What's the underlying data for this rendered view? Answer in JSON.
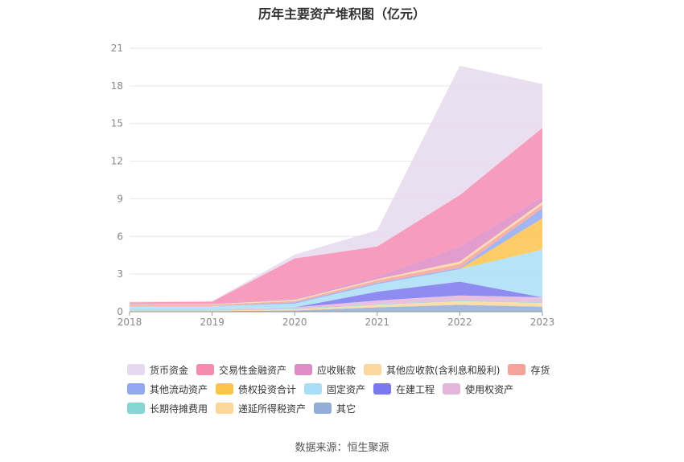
{
  "chart_data": {
    "type": "area",
    "stacked": true,
    "title": "历年主要资产堆积图（亿元）",
    "categories": [
      "2018",
      "2019",
      "2020",
      "2021",
      "2022",
      "2023"
    ],
    "ylim": [
      0,
      21
    ],
    "yticks": [
      0,
      3,
      6,
      9,
      12,
      15,
      18,
      21
    ],
    "grid": true,
    "legend_position": "bottom",
    "series": [
      {
        "name": "其它",
        "color": "#94acd8",
        "values": [
          0.05,
          0.05,
          0.1,
          0.35,
          0.55,
          0.4
        ]
      },
      {
        "name": "递延所得税资产",
        "color": "#fdd79a",
        "values": [
          0.05,
          0.05,
          0.1,
          0.2,
          0.3,
          0.3
        ]
      },
      {
        "name": "长期待摊费用",
        "color": "#86d5d5",
        "values": [
          0.05,
          0.05,
          0.05,
          0.05,
          0.05,
          0.05
        ]
      },
      {
        "name": "使用权资产",
        "color": "#e3b7db",
        "values": [
          0.0,
          0.0,
          0.1,
          0.3,
          0.4,
          0.4
        ]
      },
      {
        "name": "在建工程",
        "color": "#7b78ee",
        "values": [
          0.0,
          0.0,
          0.0,
          0.7,
          1.1,
          0.0
        ]
      },
      {
        "name": "固定资产",
        "color": "#a9def6",
        "values": [
          0.3,
          0.3,
          0.3,
          0.6,
          1.0,
          3.8
        ]
      },
      {
        "name": "债权投资合计",
        "color": "#fcc44b",
        "values": [
          0.0,
          0.0,
          0.0,
          0.0,
          0.0,
          2.5
        ]
      },
      {
        "name": "其他流动资产",
        "color": "#92a8f2",
        "values": [
          0.0,
          0.0,
          0.1,
          0.1,
          0.1,
          0.8
        ]
      },
      {
        "name": "存货",
        "color": "#f6a19a",
        "values": [
          0.1,
          0.1,
          0.1,
          0.2,
          0.3,
          0.3
        ]
      },
      {
        "name": "其他应收款(含利息和股利)",
        "color": "#fbd79f",
        "values": [
          0.05,
          0.05,
          0.1,
          0.1,
          0.2,
          0.2
        ]
      },
      {
        "name": "应收账款",
        "color": "#dd8cc5",
        "values": [
          0.05,
          0.05,
          0.1,
          0.2,
          1.2,
          0.4
        ]
      },
      {
        "name": "交易性金融资产",
        "color": "#f68bb0",
        "values": [
          0.1,
          0.15,
          3.2,
          2.4,
          4.1,
          5.5
        ]
      },
      {
        "name": "货币资金",
        "color": "#e6d8ee",
        "values": [
          0.05,
          0.05,
          0.3,
          1.3,
          10.3,
          3.5
        ]
      }
    ]
  },
  "legend_rows": [
    [
      "货币资金",
      "交易性金融资产",
      "应收账款",
      "其他应收款(含利息和股利)",
      "存货"
    ],
    [
      "其他流动资产",
      "债权投资合计",
      "固定资产",
      "在建工程",
      "使用权资产"
    ],
    [
      "长期待摊费用",
      "递延所得税资产",
      "其它"
    ]
  ],
  "source": "数据来源：恒生聚源"
}
